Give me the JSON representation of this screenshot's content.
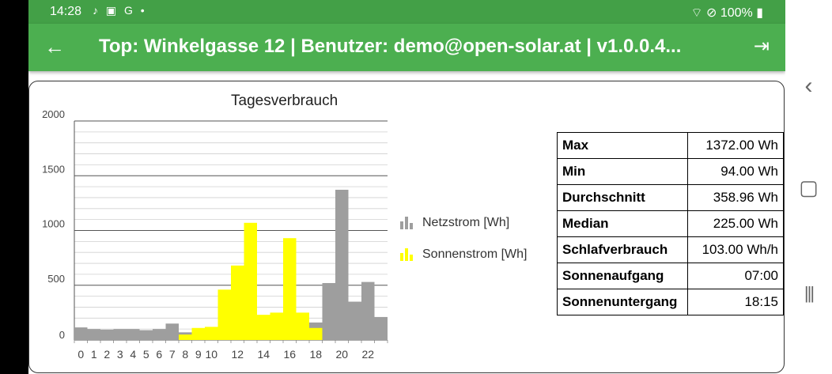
{
  "status_bar": {
    "time": "14:28",
    "left_icons": "♪ ▣ G •",
    "right": "⌔ ⊘ 100% ▮"
  },
  "app_bar": {
    "title": "Top: Winkelgasse 12 | Benutzer: demo@open-solar.at | v1.0.0.4...",
    "back_icon": "arrow-left",
    "logout_icon": "logout"
  },
  "chart_data": {
    "type": "bar",
    "title": "Tagesverbrauch",
    "categories": [
      0,
      1,
      2,
      3,
      4,
      5,
      6,
      7,
      8,
      9,
      10,
      11,
      12,
      13,
      14,
      15,
      16,
      17,
      18,
      19,
      20,
      21,
      22,
      23
    ],
    "x_tick_labels": [
      "0",
      "1",
      "2",
      "3",
      "4",
      "5",
      "6",
      "7",
      "8",
      "9",
      "10",
      "12",
      "14",
      "16",
      "18",
      "20",
      "22"
    ],
    "y_ticks": [
      "2000",
      "1500",
      "1000",
      "500",
      "0"
    ],
    "ylim": [
      0,
      2000
    ],
    "series": [
      {
        "name": "Netzstrom [Wh]",
        "color": "#9e9e9e",
        "values": [
          115,
          100,
          95,
          100,
          100,
          90,
          100,
          150,
          70,
          40,
          45,
          40,
          40,
          0,
          0,
          0,
          0,
          40,
          160,
          520,
          1372,
          350,
          530,
          210
        ]
      },
      {
        "name": "Sonnenstrom [Wh]",
        "color": "#ffff00",
        "values": [
          0,
          0,
          0,
          0,
          0,
          0,
          0,
          0,
          50,
          110,
          120,
          460,
          680,
          1070,
          230,
          250,
          930,
          250,
          110,
          0,
          0,
          0,
          0,
          0
        ]
      }
    ],
    "legend_position": "right",
    "grid": true
  },
  "stats": [
    {
      "label": "Max",
      "value": "1372.00 Wh"
    },
    {
      "label": "Min",
      "value": "94.00 Wh"
    },
    {
      "label": "Durchschnitt",
      "value": "358.96 Wh"
    },
    {
      "label": "Median",
      "value": "225.00 Wh"
    },
    {
      "label": "Schlafverbrauch",
      "value": "103.00 Wh/h"
    },
    {
      "label": "Sonnenaufgang",
      "value": "07:00"
    },
    {
      "label": "Sonnenuntergang",
      "value": "18:15"
    }
  ],
  "nav": {
    "back": "‹",
    "home": "▢",
    "recents": "|||"
  }
}
